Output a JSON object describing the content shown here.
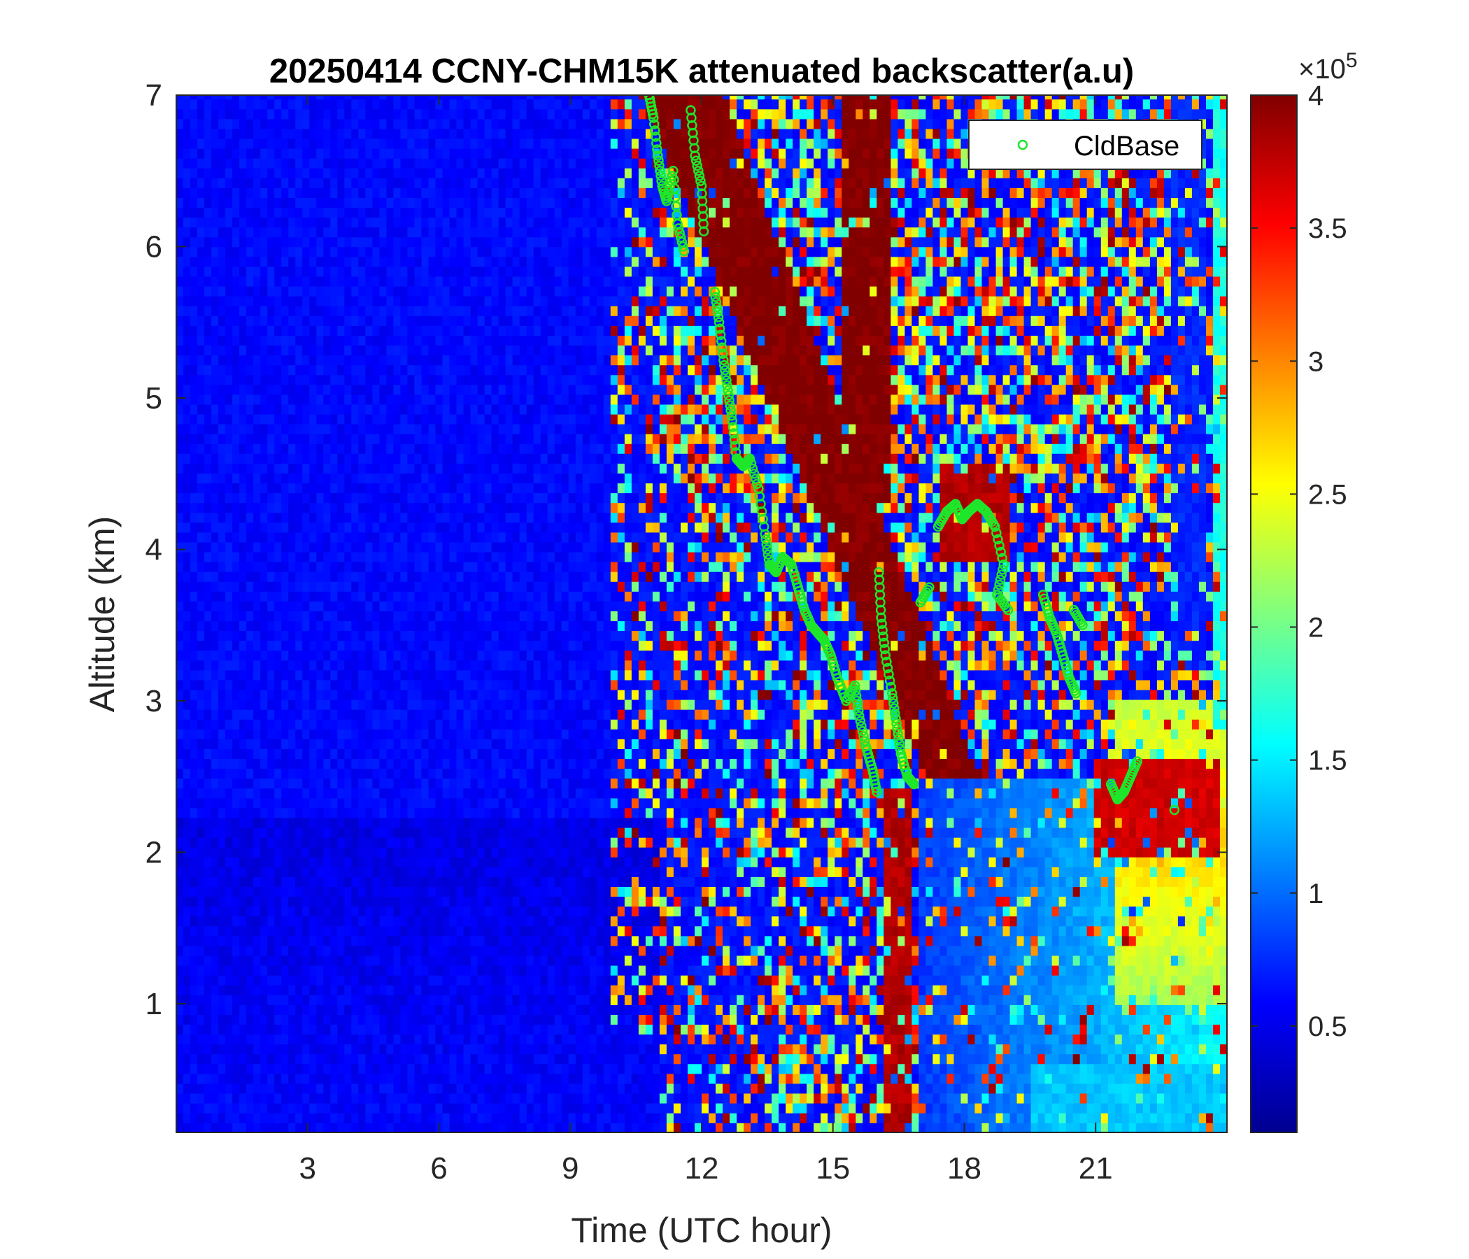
{
  "chart_data": {
    "type": "heatmap",
    "title": "20250414 CCNY-CHM15K attenuated backscatter(a.u)",
    "xlabel": "Time (UTC hour)",
    "ylabel": "Altitude (km)",
    "xlim": [
      0,
      24
    ],
    "ylim": [
      0.15,
      7
    ],
    "xticks": [
      3,
      6,
      9,
      12,
      15,
      18,
      21
    ],
    "yticks": [
      1,
      2,
      3,
      4,
      5,
      6,
      7
    ],
    "colormap": "jet",
    "colors": {
      "cldbase_marker": "#1ee62b",
      "low_end": "#00008f",
      "high_end": "#800000"
    },
    "colorbar": {
      "range": [
        10000,
        400000
      ],
      "exponent_label": "×10",
      "exponent_power": "5",
      "ticks": [
        0.5,
        1,
        1.5,
        2,
        2.5,
        3,
        3.5,
        4
      ],
      "tick_labels": [
        "0.5",
        "1",
        "1.5",
        "2",
        "2.5",
        "3",
        "3.5",
        "4"
      ]
    },
    "legend": {
      "position": "top-right",
      "entries": [
        "CldBase"
      ]
    },
    "series": [
      {
        "name": "CldBase",
        "marker": "circle",
        "points": [
          [
            10.8,
            7.0
          ],
          [
            10.9,
            6.85
          ],
          [
            11.0,
            6.6
          ],
          [
            11.1,
            6.4
          ],
          [
            11.2,
            6.3
          ],
          [
            11.35,
            6.5
          ],
          [
            11.45,
            6.15
          ],
          [
            11.6,
            5.97
          ],
          [
            11.75,
            6.9
          ],
          [
            11.85,
            6.6
          ],
          [
            12.0,
            6.4
          ],
          [
            12.05,
            6.1
          ],
          [
            12.3,
            5.7
          ],
          [
            12.4,
            5.5
          ],
          [
            12.5,
            5.25
          ],
          [
            12.6,
            5.05
          ],
          [
            12.7,
            4.85
          ],
          [
            12.8,
            4.6
          ],
          [
            12.95,
            4.55
          ],
          [
            13.1,
            4.6
          ],
          [
            13.3,
            4.4
          ],
          [
            13.45,
            4.1
          ],
          [
            13.55,
            3.9
          ],
          [
            13.7,
            3.85
          ],
          [
            13.85,
            3.95
          ],
          [
            14.05,
            3.9
          ],
          [
            14.2,
            3.75
          ],
          [
            14.35,
            3.6
          ],
          [
            14.5,
            3.5
          ],
          [
            14.65,
            3.45
          ],
          [
            14.8,
            3.4
          ],
          [
            14.95,
            3.3
          ],
          [
            15.1,
            3.15
          ],
          [
            15.3,
            3.0
          ],
          [
            15.5,
            3.1
          ],
          [
            15.6,
            2.9
          ],
          [
            15.75,
            2.7
          ],
          [
            15.9,
            2.55
          ],
          [
            16.0,
            2.4
          ],
          [
            16.05,
            3.85
          ],
          [
            16.1,
            3.55
          ],
          [
            16.2,
            3.3
          ],
          [
            16.35,
            3.05
          ],
          [
            16.45,
            2.85
          ],
          [
            16.55,
            2.65
          ],
          [
            16.7,
            2.5
          ],
          [
            16.85,
            2.45
          ],
          [
            17.0,
            3.65
          ],
          [
            17.2,
            3.75
          ],
          [
            17.4,
            4.15
          ],
          [
            17.6,
            4.25
          ],
          [
            17.8,
            4.3
          ],
          [
            17.95,
            4.2
          ],
          [
            18.1,
            4.25
          ],
          [
            18.3,
            4.3
          ],
          [
            18.5,
            4.25
          ],
          [
            18.7,
            4.15
          ],
          [
            18.9,
            3.9
          ],
          [
            18.75,
            3.7
          ],
          [
            19.0,
            3.6
          ],
          [
            19.8,
            3.7
          ],
          [
            19.95,
            3.55
          ],
          [
            20.1,
            3.45
          ],
          [
            20.25,
            3.3
          ],
          [
            20.4,
            3.15
          ],
          [
            20.55,
            3.05
          ],
          [
            20.7,
            3.5
          ],
          [
            20.5,
            3.6
          ],
          [
            21.35,
            2.45
          ],
          [
            21.5,
            2.35
          ],
          [
            21.65,
            2.4
          ],
          [
            21.8,
            2.5
          ],
          [
            21.95,
            2.6
          ],
          [
            22.8,
            2.28
          ]
        ]
      }
    ]
  }
}
